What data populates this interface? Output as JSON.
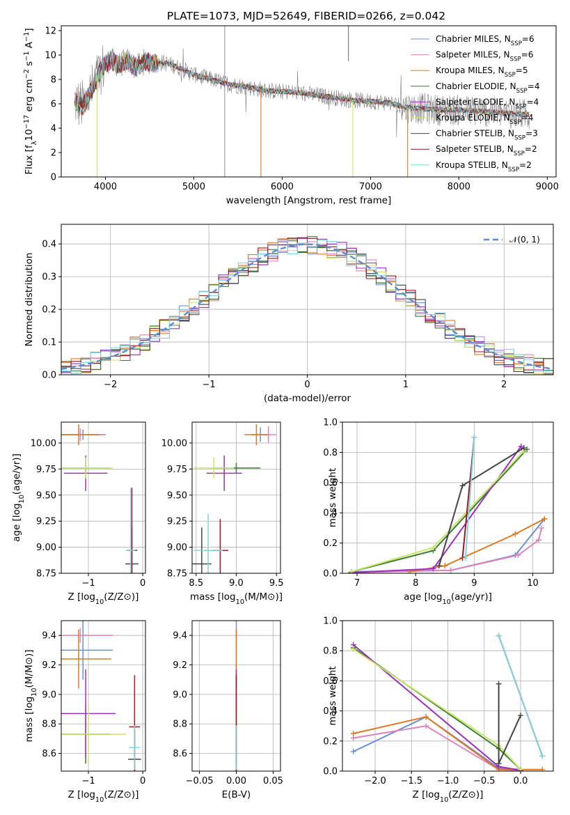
{
  "figure": {
    "title": "PLATE=1073, MJD=52649, FIBERID=0266, z=0.042"
  },
  "colors": {
    "Chabrier MILES": "#6b8fd6",
    "Salpeter MILES": "#e083bc",
    "Kroupa MILES": "#dd7a22",
    "Chabrier ELODIE": "#3a7d35",
    "Salpeter ELODIE": "#9b2fbf",
    "Kroupa ELODIE": "#c9e56a",
    "Chabrier STELIB": "#444444",
    "Salpeter STELIB": "#a0151a",
    "Kroupa STELIB": "#7fd6e0",
    "data": "#808080",
    "normal": "#5b8ad6",
    "grid": "#b0b0b0"
  },
  "chart_data": [
    {
      "id": "spectrum",
      "type": "line",
      "title": "PLATE=1073, MJD=52649, FIBERID=0266, z=0.042",
      "xlabel": "wavelength [Angstrom, rest frame]",
      "ylabel": "Flux [f_λ 10^-17 erg cm^-2 s^-1 A^-1]",
      "xlim": [
        3500,
        9100
      ],
      "ylim": [
        0,
        12.4
      ],
      "xticks": [
        4000,
        5000,
        6000,
        7000,
        8000,
        9000
      ],
      "yticks": [
        0,
        2,
        4,
        6,
        8,
        10,
        12
      ],
      "grid": false,
      "legend_position": "top-right",
      "legend": [
        "Chabrier MILES, N_SSP=6",
        "Salpeter MILES, N_SSP=6",
        "Kroupa MILES, N_SSP=5",
        "Chabrier ELODIE, N_SSP=4",
        "Salpeter ELODIE, N_SSP=4",
        "Kroupa ELODIE, N_SSP=4",
        "Chabrier STELIB, N_SSP=3",
        "Salpeter STELIB, N_SSP=2",
        "Kroupa STELIB, N_SSP=2"
      ],
      "continuum": {
        "x": [
          3650,
          3750,
          3850,
          3950,
          4050,
          4150,
          4250,
          4350,
          4450,
          4550,
          4650,
          4750,
          4850,
          5000,
          5200,
          5400,
          5600,
          5800,
          6000,
          6200,
          6400,
          6600,
          6800,
          7000,
          7200,
          7400,
          7600,
          7800,
          8000,
          8200,
          8400,
          8600,
          8800
        ],
        "y": [
          6.2,
          5.8,
          7.2,
          8.8,
          9.6,
          9.2,
          9.5,
          9.0,
          9.5,
          9.3,
          9.4,
          9.2,
          8.9,
          8.4,
          8.0,
          7.6,
          7.4,
          7.1,
          7.0,
          6.9,
          6.7,
          6.5,
          6.3,
          6.2,
          6.1,
          5.7,
          5.6,
          5.5,
          5.5,
          5.4,
          5.3,
          5.2,
          5.1
        ]
      },
      "model_dips": [
        [
          3905,
          0
        ],
        [
          5760,
          0
        ],
        [
          6800,
          0
        ],
        [
          7420,
          0
        ]
      ]
    },
    {
      "id": "residuals",
      "type": "area",
      "xlabel": "(data-model)/error",
      "ylabel": "Normed distribution",
      "xlim": [
        -2.5,
        2.5
      ],
      "ylim": [
        0,
        0.46
      ],
      "xticks": [
        -2,
        -1,
        0,
        1,
        2
      ],
      "yticks": [
        0.0,
        0.1,
        0.2,
        0.3,
        0.4
      ],
      "grid": true,
      "legend_position": "top-right",
      "legend": [
        "𝒩(0, 1)"
      ],
      "bin_width": 0.1
    },
    {
      "id": "age-vs-Z",
      "type": "scatter",
      "xlabel": "Z [log10(Z/Z⊙)]",
      "ylabel": "age  [log10(age/yr)]",
      "xlim": [
        -1.5,
        0.05
      ],
      "ylim": [
        8.75,
        10.2
      ],
      "xticks": [
        -1,
        0
      ],
      "yticks": [
        8.75,
        9.0,
        9.25,
        9.5,
        9.75,
        10.0
      ],
      "grid": true,
      "points": [
        {
          "model": "Chabrier MILES",
          "x": -1.1,
          "y": 10.08,
          "xerr": 0.42,
          "yerr": 0.05
        },
        {
          "model": "Salpeter MILES",
          "x": -1.15,
          "y": 10.08,
          "xerr": 0.45,
          "yerr": 0.06
        },
        {
          "model": "Kroupa MILES",
          "x": -1.18,
          "y": 10.08,
          "xerr": 0.38,
          "yerr": 0.1
        },
        {
          "model": "Chabrier ELODIE",
          "x": -1.05,
          "y": 9.76,
          "xerr": 0.45,
          "yerr": 0.05
        },
        {
          "model": "Salpeter ELODIE",
          "x": -1.05,
          "y": 9.71,
          "xerr": 0.4,
          "yerr": 0.17
        },
        {
          "model": "Kroupa ELODIE",
          "x": -1.05,
          "y": 9.76,
          "xerr": 0.5,
          "yerr": 0.1
        },
        {
          "model": "Chabrier STELIB",
          "x": -0.2,
          "y": 8.84,
          "xerr": 0.12,
          "yerr": 0.35
        },
        {
          "model": "Salpeter STELIB",
          "x": -0.2,
          "y": 8.97,
          "xerr": 0.1,
          "yerr": 0.6
        },
        {
          "model": "Kroupa STELIB",
          "x": -0.22,
          "y": 8.97,
          "xerr": 0.08,
          "yerr": 0.6
        }
      ]
    },
    {
      "id": "age-vs-mass",
      "type": "scatter",
      "xlabel": "mass [log10(M/M⊙)]",
      "ylabel": "",
      "xlim": [
        8.45,
        9.55
      ],
      "ylim": [
        8.75,
        10.2
      ],
      "xticks": [
        8.5,
        9.0,
        9.5
      ],
      "yticks": [
        8.75,
        9.0,
        9.25,
        9.5,
        9.75,
        10.0
      ],
      "grid": true,
      "points": [
        {
          "model": "Chabrier MILES",
          "x": 9.3,
          "y": 10.08,
          "xerr": 0.12,
          "yerr": 0.07
        },
        {
          "model": "Salpeter MILES",
          "x": 9.4,
          "y": 10.08,
          "xerr": 0.1,
          "yerr": 0.08
        },
        {
          "model": "Kroupa MILES",
          "x": 9.25,
          "y": 10.08,
          "xerr": 0.15,
          "yerr": 0.1
        },
        {
          "model": "Chabrier ELODIE",
          "x": 9.0,
          "y": 9.76,
          "xerr": 0.3,
          "yerr": 0.05
        },
        {
          "model": "Salpeter ELODIE",
          "x": 8.85,
          "y": 9.71,
          "xerr": 0.22,
          "yerr": 0.17
        },
        {
          "model": "Kroupa ELODIE",
          "x": 8.72,
          "y": 9.76,
          "xerr": 0.25,
          "yerr": 0.1
        },
        {
          "model": "Chabrier STELIB",
          "x": 8.57,
          "y": 8.84,
          "xerr": 0.12,
          "yerr": 0.35
        },
        {
          "model": "Salpeter STELIB",
          "x": 8.8,
          "y": 8.97,
          "xerr": 0.1,
          "yerr": 0.3
        },
        {
          "model": "Kroupa STELIB",
          "x": 8.65,
          "y": 8.97,
          "xerr": 0.18,
          "yerr": 0.35
        }
      ]
    },
    {
      "id": "weight-vs-age",
      "type": "line",
      "xlabel": "age  [log10(age/yr)]",
      "ylabel": "mass weight",
      "xlim": [
        6.75,
        10.35
      ],
      "ylim": [
        0,
        1
      ],
      "xticks": [
        7,
        8,
        9,
        10
      ],
      "yticks": [
        0.0,
        0.2,
        0.4,
        0.6,
        0.8,
        1.0
      ],
      "grid": true,
      "series": [
        {
          "model": "Chabrier MILES",
          "x": [
            6.9,
            8.6,
            9.7,
            10.2
          ],
          "y": [
            0.01,
            0.02,
            0.12,
            0.36
          ]
        },
        {
          "model": "Salpeter MILES",
          "x": [
            6.9,
            8.6,
            9.75,
            10.1,
            10.15
          ],
          "y": [
            0.005,
            0.02,
            0.12,
            0.22,
            0.3
          ]
        },
        {
          "model": "Kroupa MILES",
          "x": [
            7.9,
            8.5,
            9.7,
            10.2
          ],
          "y": [
            0.01,
            0.05,
            0.26,
            0.36
          ]
        },
        {
          "model": "Chabrier ELODIE",
          "x": [
            6.9,
            8.3,
            9.9
          ],
          "y": [
            0.01,
            0.15,
            0.82
          ]
        },
        {
          "model": "Salpeter ELODIE",
          "x": [
            6.9,
            8.3,
            9.8
          ],
          "y": [
            0.005,
            0.03,
            0.84
          ]
        },
        {
          "model": "Kroupa ELODIE",
          "x": [
            6.9,
            8.3,
            9.85
          ],
          "y": [
            0.01,
            0.17,
            0.81
          ]
        },
        {
          "model": "Chabrier STELIB",
          "x": [
            8.4,
            8.8,
            9.85
          ],
          "y": [
            0.05,
            0.58,
            0.83
          ]
        },
        {
          "model": "Salpeter STELIB",
          "x": [
            8.8,
            9.0
          ],
          "y": [
            0.1,
            0.9
          ]
        },
        {
          "model": "Kroupa STELIB",
          "x": [
            8.85,
            9.0
          ],
          "y": [
            0.1,
            0.9
          ]
        }
      ]
    },
    {
      "id": "mass-vs-Z",
      "type": "scatter",
      "xlabel": "Z [log10(Z/Z⊙)]",
      "ylabel": "mass [log10(M/M⊙)]",
      "xlim": [
        -1.5,
        0.05
      ],
      "ylim": [
        8.48,
        9.5
      ],
      "xticks": [
        -1,
        0
      ],
      "yticks": [
        8.6,
        8.8,
        9.0,
        9.2,
        9.4
      ],
      "grid": true,
      "points": [
        {
          "model": "Chabrier MILES",
          "x": -1.1,
          "y": 9.3,
          "xerr": 0.55,
          "yerr": 0.2
        },
        {
          "model": "Salpeter MILES",
          "x": -1.15,
          "y": 9.4,
          "xerr": 0.6,
          "yerr": 0.05
        },
        {
          "model": "Kroupa MILES",
          "x": -1.18,
          "y": 9.24,
          "xerr": 0.6,
          "yerr": 0.2
        },
        {
          "model": "Chabrier ELODIE",
          "x": -1.05,
          "y": 8.73,
          "xerr": 0.45,
          "yerr": 0.2
        },
        {
          "model": "Salpeter ELODIE",
          "x": -1.05,
          "y": 8.87,
          "xerr": 0.55,
          "yerr": 0.3
        },
        {
          "model": "Kroupa ELODIE",
          "x": -1.0,
          "y": 8.73,
          "xerr": 0.7,
          "yerr": 0.2
        },
        {
          "model": "Chabrier STELIB",
          "x": -0.15,
          "y": 8.56,
          "xerr": 0.12,
          "yerr": 0.2
        },
        {
          "model": "Salpeter STELIB",
          "x": -0.15,
          "y": 8.78,
          "xerr": 0.1,
          "yerr": 0.35
        },
        {
          "model": "Kroupa STELIB",
          "x": -0.15,
          "y": 8.64,
          "xerr": 0.1,
          "yerr": 0.15
        }
      ]
    },
    {
      "id": "mass-vs-ebv",
      "type": "scatter",
      "xlabel": "E(B-V)",
      "ylabel": "",
      "xlim": [
        -0.06,
        0.06
      ],
      "ylim": [
        8.48,
        9.5
      ],
      "xticks": [
        -0.05,
        0.0,
        0.05
      ],
      "yticks": [
        8.6,
        8.8,
        9.0,
        9.2,
        9.4
      ],
      "grid": true,
      "points": [
        {
          "model": "Chabrier MILES",
          "x": 0.0,
          "y": 9.3,
          "xerr": 0,
          "yerr": 0.2
        },
        {
          "model": "Salpeter MILES",
          "x": 0.0,
          "y": 9.4,
          "xerr": 0,
          "yerr": 0.05
        },
        {
          "model": "Kroupa MILES",
          "x": 0.0,
          "y": 9.24,
          "xerr": 0,
          "yerr": 0.2
        },
        {
          "model": "Chabrier ELODIE",
          "x": 0.0,
          "y": 8.73,
          "xerr": 0,
          "yerr": 0.2
        },
        {
          "model": "Salpeter ELODIE",
          "x": 0.0,
          "y": 8.87,
          "xerr": 0,
          "yerr": 0.3
        },
        {
          "model": "Kroupa ELODIE",
          "x": 0.0,
          "y": 8.73,
          "xerr": 0,
          "yerr": 0.2
        },
        {
          "model": "Chabrier STELIB",
          "x": 0.0,
          "y": 8.56,
          "xerr": 0,
          "yerr": 0.2
        },
        {
          "model": "Salpeter STELIB",
          "x": 0.0,
          "y": 8.78,
          "xerr": 0,
          "yerr": 0.35
        },
        {
          "model": "Kroupa STELIB",
          "x": 0.0,
          "y": 8.64,
          "xerr": 0,
          "yerr": 0.15
        }
      ]
    },
    {
      "id": "weight-vs-Z",
      "type": "line",
      "xlabel": "Z [log10(Z/Z⊙)]",
      "ylabel": "mass weight",
      "xlim": [
        -2.45,
        0.45
      ],
      "ylim": [
        0,
        1
      ],
      "xticks": [
        -2.0,
        -1.5,
        -1.0,
        -0.5,
        0.0
      ],
      "yticks": [
        0.0,
        0.2,
        0.4,
        0.6,
        0.8,
        1.0
      ],
      "grid": true,
      "series": [
        {
          "model": "Chabrier MILES",
          "x": [
            -2.3,
            -1.3,
            -0.3,
            0.0
          ],
          "y": [
            0.13,
            0.36,
            0.02,
            0.01
          ]
        },
        {
          "model": "Salpeter MILES",
          "x": [
            -2.3,
            -1.3,
            -0.3,
            0.0
          ],
          "y": [
            0.22,
            0.3,
            0.01,
            0.005
          ]
        },
        {
          "model": "Kroupa MILES",
          "x": [
            -2.3,
            -1.3,
            -0.3,
            0.0,
            0.3
          ],
          "y": [
            0.25,
            0.36,
            0.01,
            0.01,
            0.01
          ]
        },
        {
          "model": "Chabrier ELODIE",
          "x": [
            -2.3,
            -0.3,
            0.0
          ],
          "y": [
            0.82,
            0.15,
            0.01
          ]
        },
        {
          "model": "Salpeter ELODIE",
          "x": [
            -2.3,
            -0.3,
            0.0
          ],
          "y": [
            0.84,
            0.03,
            0.005
          ]
        },
        {
          "model": "Kroupa ELODIE",
          "x": [
            -2.3,
            -0.3,
            0.0
          ],
          "y": [
            0.81,
            0.17,
            0.01
          ]
        },
        {
          "model": "Chabrier STELIB",
          "x": [
            -0.3,
            -0.3,
            0.0
          ],
          "y": [
            0.58,
            0.05,
            0.37
          ]
        },
        {
          "model": "Salpeter STELIB",
          "x": [
            -0.3,
            0.3
          ],
          "y": [
            0.9,
            0.1
          ]
        },
        {
          "model": "Kroupa STELIB",
          "x": [
            -0.3,
            0.3
          ],
          "y": [
            0.9,
            0.1
          ]
        }
      ]
    }
  ]
}
